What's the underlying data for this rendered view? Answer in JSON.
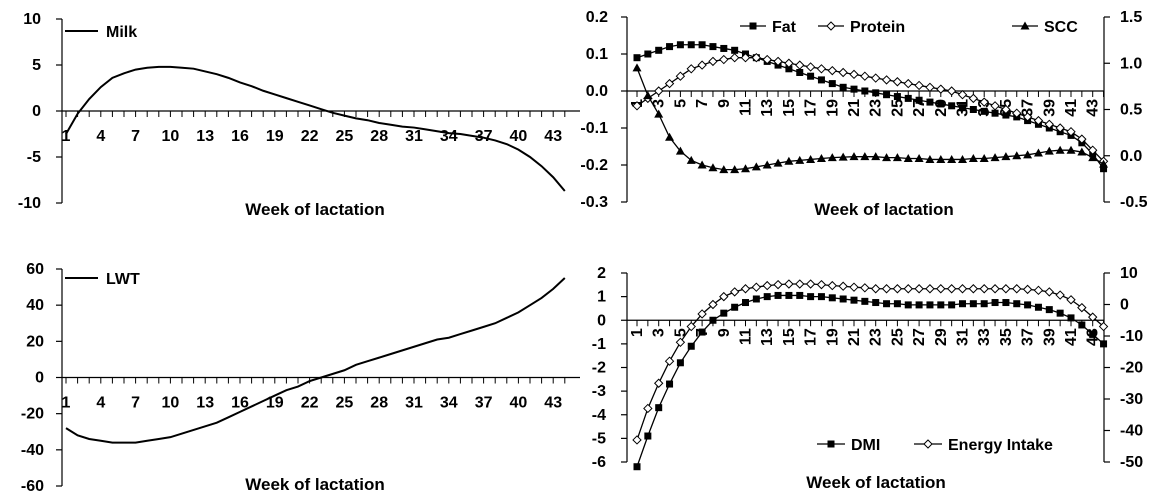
{
  "chart_data": [
    {
      "type": "line",
      "xlabel": "Week of lactation",
      "x_ticks": [
        1,
        4,
        7,
        10,
        13,
        16,
        19,
        22,
        25,
        28,
        31,
        34,
        37,
        40,
        43
      ],
      "yticks": [
        -10,
        -5,
        0,
        5,
        10
      ],
      "ylim": [
        -10,
        10
      ],
      "x": [
        1,
        2,
        3,
        4,
        5,
        6,
        7,
        8,
        9,
        10,
        11,
        12,
        13,
        14,
        15,
        16,
        17,
        18,
        19,
        20,
        21,
        22,
        23,
        24,
        25,
        26,
        27,
        28,
        29,
        30,
        31,
        32,
        33,
        34,
        35,
        36,
        37,
        38,
        39,
        40,
        41,
        42,
        43,
        44
      ],
      "series": [
        {
          "name": "Milk",
          "values": [
            -2.5,
            -0.3,
            1.3,
            2.6,
            3.6,
            4.1,
            4.5,
            4.7,
            4.8,
            4.8,
            4.7,
            4.6,
            4.3,
            4.0,
            3.6,
            3.1,
            2.7,
            2.2,
            1.8,
            1.4,
            1.0,
            0.6,
            0.2,
            -0.2,
            -0.5,
            -0.8,
            -1.0,
            -1.3,
            -1.5,
            -1.7,
            -1.8,
            -2.0,
            -2.2,
            -2.4,
            -2.5,
            -2.7,
            -2.9,
            -3.2,
            -3.6,
            -4.2,
            -5.0,
            -6.0,
            -7.2,
            -8.7
          ]
        }
      ]
    },
    {
      "type": "line",
      "xlabel": "Week of lactation",
      "x_ticks": [
        1,
        3,
        5,
        7,
        9,
        11,
        13,
        15,
        17,
        19,
        21,
        23,
        25,
        27,
        29,
        31,
        33,
        35,
        37,
        39,
        41,
        43
      ],
      "yticks_left": [
        -0.3,
        -0.2,
        -0.1,
        0.0,
        0.1,
        0.2
      ],
      "yticks_left_labels": [
        "-0.3",
        "-0.2",
        "-0.1",
        "0.0",
        "0.1",
        "0.2"
      ],
      "ylim_left": [
        -0.3,
        0.2
      ],
      "yticks_right": [
        -0.5,
        0.0,
        0.5,
        1.0,
        1.5
      ],
      "yticks_right_labels": [
        "-0.5",
        "0.0",
        "0.5",
        "1.0",
        "1.5"
      ],
      "ylim_right": [
        -0.5,
        1.5
      ],
      "x": [
        1,
        2,
        3,
        4,
        5,
        6,
        7,
        8,
        9,
        10,
        11,
        12,
        13,
        14,
        15,
        16,
        17,
        18,
        19,
        20,
        21,
        22,
        23,
        24,
        25,
        26,
        27,
        28,
        29,
        30,
        31,
        32,
        33,
        34,
        35,
        36,
        37,
        38,
        39,
        40,
        41,
        42,
        43,
        44
      ],
      "series": [
        {
          "name": "Fat",
          "axis": "left",
          "marker": "square",
          "values": [
            0.09,
            0.1,
            0.11,
            0.12,
            0.125,
            0.125,
            0.125,
            0.12,
            0.115,
            0.11,
            0.1,
            0.09,
            0.08,
            0.07,
            0.06,
            0.05,
            0.04,
            0.03,
            0.02,
            0.01,
            0.005,
            0.0,
            -0.005,
            -0.01,
            -0.015,
            -0.02,
            -0.025,
            -0.03,
            -0.035,
            -0.04,
            -0.045,
            -0.05,
            -0.055,
            -0.06,
            -0.065,
            -0.07,
            -0.08,
            -0.09,
            -0.1,
            -0.11,
            -0.12,
            -0.14,
            -0.17,
            -0.21
          ]
        },
        {
          "name": "Protein",
          "axis": "left",
          "marker": "diamond",
          "values": [
            -0.04,
            -0.02,
            0.0,
            0.02,
            0.04,
            0.06,
            0.07,
            0.08,
            0.085,
            0.09,
            0.09,
            0.09,
            0.085,
            0.08,
            0.075,
            0.07,
            0.065,
            0.06,
            0.055,
            0.05,
            0.045,
            0.04,
            0.035,
            0.03,
            0.025,
            0.02,
            0.015,
            0.01,
            0.005,
            0.0,
            -0.01,
            -0.02,
            -0.03,
            -0.04,
            -0.05,
            -0.06,
            -0.07,
            -0.08,
            -0.09,
            -0.1,
            -0.11,
            -0.13,
            -0.16,
            -0.19
          ]
        },
        {
          "name": "SCC",
          "axis": "right",
          "marker": "triangle",
          "values": [
            0.95,
            0.65,
            0.45,
            0.2,
            0.05,
            -0.05,
            -0.1,
            -0.13,
            -0.15,
            -0.15,
            -0.14,
            -0.12,
            -0.1,
            -0.08,
            -0.06,
            -0.05,
            -0.04,
            -0.03,
            -0.02,
            -0.015,
            -0.01,
            -0.01,
            -0.01,
            -0.02,
            -0.02,
            -0.03,
            -0.03,
            -0.04,
            -0.04,
            -0.04,
            -0.04,
            -0.03,
            -0.03,
            -0.02,
            -0.01,
            0.0,
            0.01,
            0.03,
            0.05,
            0.06,
            0.06,
            0.04,
            -0.02,
            -0.09
          ]
        }
      ]
    },
    {
      "type": "line",
      "xlabel": "Week of lactation",
      "x_ticks": [
        1,
        4,
        7,
        10,
        13,
        16,
        19,
        22,
        25,
        28,
        31,
        34,
        37,
        40,
        43
      ],
      "yticks": [
        -60,
        -40,
        -20,
        0,
        20,
        40,
        60
      ],
      "ylim": [
        -60,
        60
      ],
      "x": [
        1,
        2,
        3,
        4,
        5,
        6,
        7,
        8,
        9,
        10,
        11,
        12,
        13,
        14,
        15,
        16,
        17,
        18,
        19,
        20,
        21,
        22,
        23,
        24,
        25,
        26,
        27,
        28,
        29,
        30,
        31,
        32,
        33,
        34,
        35,
        36,
        37,
        38,
        39,
        40,
        41,
        42,
        43,
        44
      ],
      "series": [
        {
          "name": "LWT",
          "values": [
            -28,
            -32,
            -34,
            -35,
            -36,
            -36,
            -36,
            -35,
            -34,
            -33,
            -31,
            -29,
            -27,
            -25,
            -22,
            -19,
            -16,
            -13,
            -10,
            -7,
            -5,
            -2,
            0,
            2,
            4,
            7,
            9,
            11,
            13,
            15,
            17,
            19,
            21,
            22,
            24,
            26,
            28,
            30,
            33,
            36,
            40,
            44,
            49,
            55
          ]
        }
      ]
    },
    {
      "type": "line",
      "xlabel": "Week of lactation",
      "x_ticks": [
        1,
        3,
        5,
        7,
        9,
        11,
        13,
        15,
        17,
        19,
        21,
        23,
        25,
        27,
        29,
        31,
        33,
        35,
        37,
        39,
        41,
        43
      ],
      "yticks_left": [
        -6,
        -5,
        -4,
        -3,
        -2,
        -1,
        0,
        1,
        2
      ],
      "ylim_left": [
        -6,
        2
      ],
      "yticks_right": [
        -50,
        -40,
        -30,
        -20,
        -10,
        0,
        10
      ],
      "ylim_right": [
        -50,
        10
      ],
      "x": [
        1,
        2,
        3,
        4,
        5,
        6,
        7,
        8,
        9,
        10,
        11,
        12,
        13,
        14,
        15,
        16,
        17,
        18,
        19,
        20,
        21,
        22,
        23,
        24,
        25,
        26,
        27,
        28,
        29,
        30,
        31,
        32,
        33,
        34,
        35,
        36,
        37,
        38,
        39,
        40,
        41,
        42,
        43,
        44
      ],
      "series": [
        {
          "name": "DMI",
          "axis": "left",
          "marker": "square",
          "values": [
            -6.2,
            -4.9,
            -3.7,
            -2.7,
            -1.8,
            -1.1,
            -0.5,
            0.0,
            0.3,
            0.55,
            0.75,
            0.9,
            1.0,
            1.05,
            1.05,
            1.05,
            1.0,
            1.0,
            0.95,
            0.9,
            0.85,
            0.8,
            0.75,
            0.7,
            0.7,
            0.65,
            0.65,
            0.65,
            0.65,
            0.65,
            0.7,
            0.7,
            0.7,
            0.75,
            0.75,
            0.7,
            0.65,
            0.55,
            0.45,
            0.3,
            0.1,
            -0.2,
            -0.6,
            -1.0
          ]
        },
        {
          "name": "Energy Intake",
          "axis": "right",
          "marker": "diamond",
          "values": [
            -43,
            -33,
            -25,
            -18,
            -12,
            -7,
            -3,
            0,
            2.5,
            4,
            5,
            5.5,
            6,
            6.3,
            6.5,
            6.5,
            6.5,
            6.3,
            6,
            5.8,
            5.5,
            5.3,
            5,
            5,
            5,
            5,
            5,
            5,
            5,
            5,
            5,
            5,
            5,
            5,
            5,
            5,
            4.8,
            4.5,
            4,
            3,
            1.5,
            -1,
            -4,
            -7
          ]
        }
      ]
    }
  ]
}
